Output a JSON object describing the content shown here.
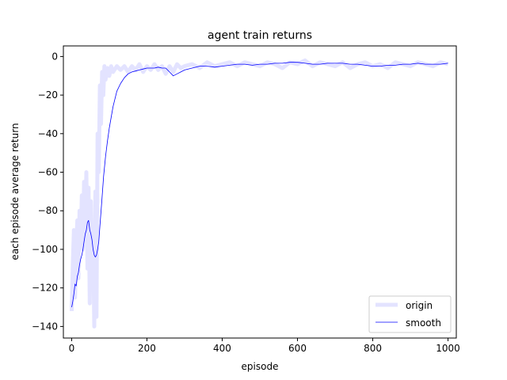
{
  "chart_data": {
    "type": "line",
    "title": "agent train returns",
    "xlabel": "episode",
    "ylabel": "each episode average return",
    "xlim": [
      -22,
      1022
    ],
    "ylim": [
      -146,
      5.5
    ],
    "xticks": [
      0,
      200,
      400,
      600,
      800,
      1000
    ],
    "yticks": [
      0,
      -20,
      -40,
      -60,
      -80,
      -100,
      -120,
      -140
    ],
    "grid": false,
    "legend_position": "bottom-right",
    "series": [
      {
        "name": "origin",
        "color": "#e3e3ff",
        "x": [
          0,
          3,
          6,
          9,
          12,
          15,
          18,
          21,
          24,
          27,
          30,
          33,
          36,
          39,
          42,
          45,
          48,
          51,
          54,
          57,
          60,
          63,
          66,
          69,
          72,
          75,
          78,
          81,
          84,
          87,
          90,
          95,
          100,
          105,
          110,
          120,
          130,
          140,
          150,
          160,
          170,
          180,
          190,
          200,
          210,
          220,
          230,
          240,
          250,
          260,
          270,
          280,
          290,
          300,
          320,
          340,
          360,
          380,
          400,
          420,
          440,
          460,
          480,
          500,
          520,
          540,
          560,
          580,
          600,
          620,
          640,
          660,
          680,
          700,
          720,
          740,
          760,
          780,
          800,
          820,
          840,
          860,
          880,
          900,
          920,
          940,
          960,
          980,
          1000
        ],
        "y": [
          -132,
          -108,
          -90,
          -125,
          -100,
          -85,
          -115,
          -80,
          -95,
          -72,
          -100,
          -65,
          -90,
          -60,
          -110,
          -68,
          -128,
          -75,
          -120,
          -90,
          -140,
          -70,
          -135,
          -40,
          -60,
          -15,
          -35,
          -8,
          -20,
          -5,
          -12,
          -6,
          -10,
          -5,
          -8,
          -5,
          -7,
          -5,
          -8,
          -5,
          -7,
          -4,
          -8,
          -5,
          -7,
          -4,
          -7,
          -5,
          -9,
          -5,
          -8,
          -4,
          -6,
          -5,
          -4,
          -6,
          -3,
          -5,
          -4,
          -3,
          -5,
          -3,
          -4,
          -5,
          -3,
          -4,
          -6,
          -3,
          -4,
          -2,
          -5,
          -3,
          -4,
          -5,
          -3,
          -6,
          -4,
          -3,
          -5,
          -4,
          -6,
          -3,
          -4,
          -5,
          -3,
          -4,
          -5,
          -3,
          -4
        ]
      },
      {
        "name": "smooth",
        "color": "#0000ff",
        "x": [
          0,
          3,
          6,
          9,
          12,
          15,
          18,
          21,
          24,
          27,
          30,
          33,
          36,
          39,
          42,
          45,
          48,
          51,
          54,
          57,
          60,
          63,
          66,
          69,
          72,
          75,
          80,
          85,
          90,
          95,
          100,
          110,
          120,
          130,
          140,
          150,
          160,
          170,
          180,
          190,
          200,
          210,
          220,
          230,
          240,
          250,
          260,
          270,
          280,
          290,
          300,
          320,
          340,
          360,
          380,
          400,
          420,
          440,
          460,
          480,
          500,
          520,
          540,
          560,
          580,
          600,
          620,
          640,
          660,
          680,
          700,
          720,
          740,
          760,
          780,
          800,
          820,
          840,
          860,
          880,
          900,
          920,
          940,
          960,
          980,
          1000
        ],
        "y": [
          -130,
          -127,
          -123,
          -118,
          -119,
          -114,
          -112,
          -108,
          -105,
          -103,
          -100,
          -96,
          -92,
          -90,
          -86,
          -85,
          -90,
          -92,
          -95,
          -100,
          -103,
          -104,
          -103,
          -100,
          -96,
          -88,
          -75,
          -62,
          -52,
          -44,
          -37,
          -26,
          -18,
          -14,
          -11,
          -9,
          -8,
          -7.5,
          -7,
          -6.5,
          -6,
          -6,
          -6,
          -5.5,
          -6,
          -6,
          -8,
          -10,
          -9,
          -8,
          -7,
          -6,
          -5,
          -5,
          -5.5,
          -5,
          -4.5,
          -4,
          -4,
          -4.5,
          -4,
          -4,
          -3.5,
          -3.5,
          -3,
          -3,
          -3.5,
          -4,
          -4,
          -3.5,
          -3.5,
          -3.5,
          -4,
          -4,
          -4.5,
          -5,
          -5,
          -4.5,
          -4.5,
          -4,
          -4,
          -3.5,
          -4,
          -4,
          -4,
          -3.5
        ]
      }
    ]
  }
}
